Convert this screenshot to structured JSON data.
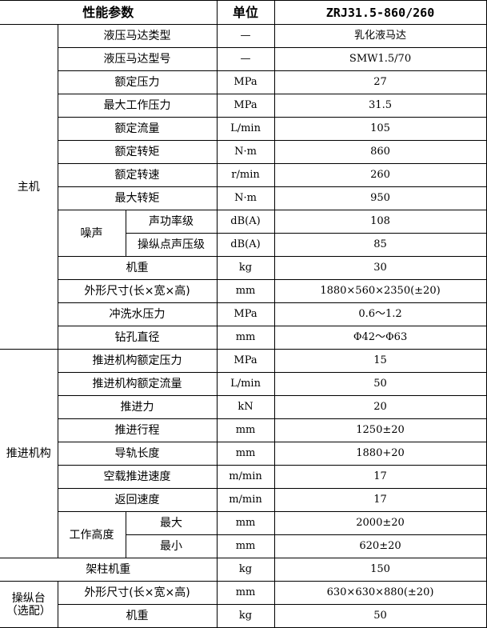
{
  "header": {
    "param": "性能参数",
    "unit": "单位",
    "model": "ZRJ31.5-860/260"
  },
  "groups": [
    {
      "label": "主机",
      "rows": [
        {
          "name": "液压马达类型",
          "unit": "—",
          "value": "乳化液马达"
        },
        {
          "name": "液压马达型号",
          "unit": "—",
          "value": "SMW1.5/70"
        },
        {
          "name": "额定压力",
          "unit": "MPa",
          "value": "27"
        },
        {
          "name": "最大工作压力",
          "unit": "MPa",
          "value": "31.5"
        },
        {
          "name": "额定流量",
          "unit": "L/min",
          "value": "105"
        },
        {
          "name": "额定转矩",
          "unit": "N·m",
          "value": "860"
        },
        {
          "name": "额定转速",
          "unit": "r/min",
          "value": "260"
        },
        {
          "name": "最大转矩",
          "unit": "N·m",
          "value": "950"
        },
        {
          "sub": "噪声",
          "name": "声功率级",
          "unit": "dB(A)",
          "value": "108"
        },
        {
          "sub": "噪声",
          "name": "操纵点声压级",
          "unit": "dB(A)",
          "value": "85"
        },
        {
          "name": "机重",
          "unit": "kg",
          "value": "30"
        },
        {
          "name": "外形尺寸(长×宽×高)",
          "unit": "mm",
          "value": "1880×560×2350(±20)"
        },
        {
          "name": "冲洗水压力",
          "unit": "MPa",
          "value": "0.6～1.2"
        },
        {
          "name": "钻孔直径",
          "unit": "mm",
          "value": "Φ42～Φ63"
        }
      ]
    },
    {
      "label": "推进机构",
      "rows": [
        {
          "name": "推进机构额定压力",
          "unit": "MPa",
          "value": "15"
        },
        {
          "name": "推进机构额定流量",
          "unit": "L/min",
          "value": "50"
        },
        {
          "name": "推进力",
          "unit": "kN",
          "value": "20"
        },
        {
          "name": "推进行程",
          "unit": "mm",
          "value": "1250±20"
        },
        {
          "name": "导轨长度",
          "unit": "mm",
          "value": "1880+20"
        },
        {
          "name": "空载推进速度",
          "unit": "m/min",
          "value": "17"
        },
        {
          "name": "返回速度",
          "unit": "m/min",
          "value": "17"
        },
        {
          "sub": "工作高度",
          "name": "最大",
          "unit": "mm",
          "value": "2000±20"
        },
        {
          "sub": "工作高度",
          "name": "最小",
          "unit": "mm",
          "value": "620±20"
        }
      ]
    },
    {
      "label": "",
      "full": "架柱机重",
      "rows": [
        {
          "name": "架柱机重",
          "unit": "kg",
          "value": "150"
        }
      ]
    },
    {
      "label": "操纵台\n（选配）",
      "rows": [
        {
          "name": "外形尺寸(长×宽×高)",
          "unit": "mm",
          "value": "630×630×880(±20)"
        },
        {
          "name": "机重",
          "unit": "kg",
          "value": "50"
        }
      ]
    }
  ]
}
